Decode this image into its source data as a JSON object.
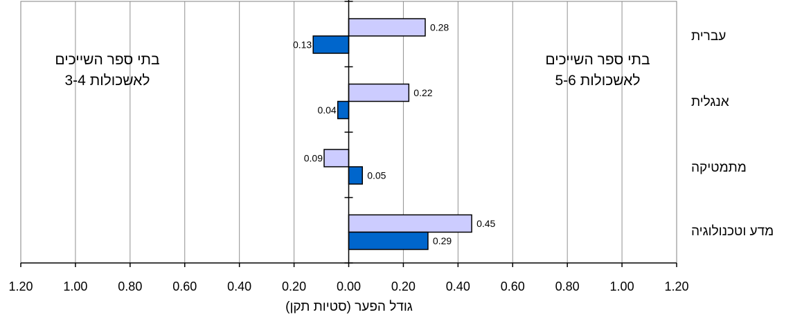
{
  "chart_data": {
    "type": "bar",
    "orientation": "horizontal",
    "categories": [
      "עברית",
      "אנגלית",
      "מתמטיקה",
      "מדע וטכנולוגיה"
    ],
    "series": [
      {
        "values": [
          0.28,
          0.22,
          -0.09,
          0.45
        ],
        "labels": [
          "0.28",
          "0.22",
          "0.09",
          "0.45"
        ],
        "color": "#ccccff"
      },
      {
        "values": [
          -0.13,
          -0.04,
          0.05,
          0.29
        ],
        "labels": [
          "0.13",
          "0.04",
          "0.05",
          "0.29"
        ],
        "color": "#0066cc"
      }
    ],
    "xlim": [
      -1.2,
      1.2
    ],
    "x_ticks": [
      -1.2,
      -1.0,
      -0.8,
      -0.6,
      -0.4,
      -0.2,
      0.0,
      0.2,
      0.4,
      0.6,
      0.8,
      1.0,
      1.2
    ],
    "x_tick_labels": [
      "1.20",
      "1.00",
      "0.80",
      "0.60",
      "0.40",
      "0.20",
      "0.00",
      "0.20",
      "0.40",
      "0.60",
      "0.80",
      "1.00",
      "1.20"
    ],
    "xlabel": "גודל הפער (סטיות תקן)",
    "grid": true,
    "region_labels": {
      "right": [
        "בתי ספר השייכים",
        "לאשכולות 5-6"
      ],
      "left": [
        "בתי ספר השייכים",
        "לאשכולות 3-4"
      ]
    }
  }
}
